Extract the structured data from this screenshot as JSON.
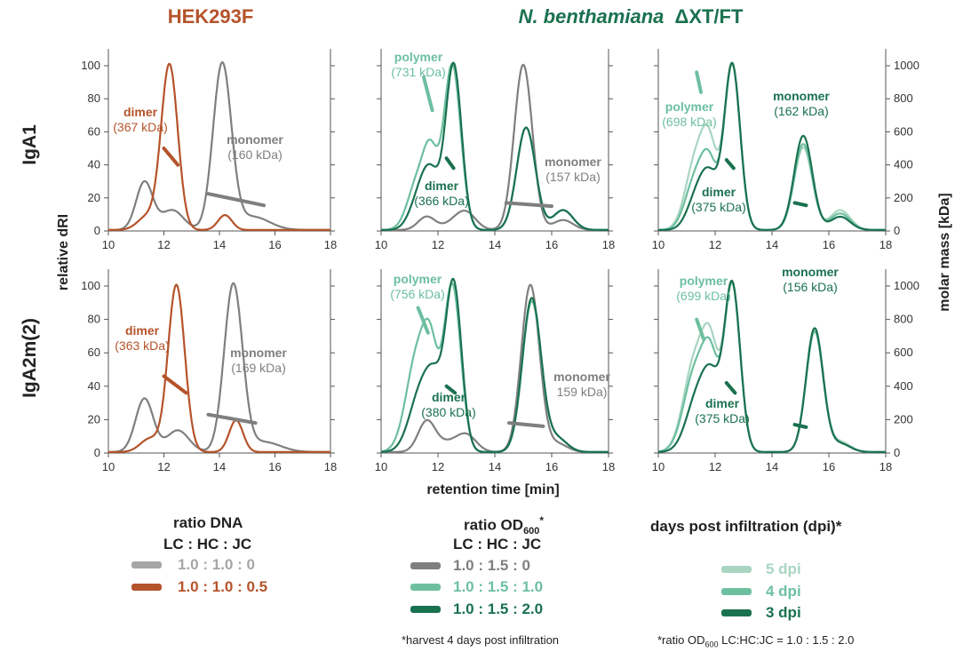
{
  "titles": {
    "hek": "HEK293F",
    "nb_italic": "N. benthamiana",
    "nb_suffix": "ΔXT/FT"
  },
  "row_labels": [
    "IgA1",
    "IgA2m(2)"
  ],
  "axes": {
    "ylabel_left": "relative dRI",
    "ylabel_right": "molar mass [kDa]",
    "xlabel": "retention time [min]",
    "x_ticks": [
      "10",
      "12",
      "14",
      "16",
      "18"
    ],
    "y_ticks_left": [
      "0",
      "20",
      "40",
      "60",
      "80",
      "100"
    ],
    "y_ticks_right": [
      "0",
      "200",
      "400",
      "600",
      "800",
      "1000"
    ]
  },
  "colors": {
    "grey": "#7f7f7f",
    "orange": "#b5532a",
    "green_light": "#a8d5c2",
    "green_mid": "#6dbfa0",
    "green_dark": "#1a7150",
    "hek_title": "#b5532a",
    "nb_title": "#1a7150"
  },
  "annotations": {
    "p1_dimer": [
      "dimer",
      "(367 kDa)"
    ],
    "p1_monomer": [
      "monomer",
      "(160 kDa)"
    ],
    "p2_polymer": [
      "polymer",
      "(731 kDa)"
    ],
    "p2_dimer": [
      "dimer",
      "(366 kDa)"
    ],
    "p2_monomer": [
      "monomer",
      "(157 kDa)"
    ],
    "p3_polymer": [
      "polymer",
      "(698 kDa)"
    ],
    "p3_monomer": [
      "monomer",
      "(162 kDa)"
    ],
    "p3_dimer": [
      "dimer",
      "(375 kDa)"
    ],
    "p4_dimer": [
      "dimer",
      "(363 kDa)"
    ],
    "p4_monomer": [
      "monomer",
      "(169 kDa)"
    ],
    "p5_polymer": [
      "polymer",
      "(756 kDa)"
    ],
    "p5_dimer": [
      "dimer",
      "(380 kDa)"
    ],
    "p5_monomer": [
      "monomer",
      "159 kDa)"
    ],
    "p6_polymer": [
      "polymer",
      "(699 kDa)"
    ],
    "p6_monomer": [
      "monomer",
      "(156 kDa)"
    ],
    "p6_dimer": [
      "dimer",
      "(375 kDa)"
    ]
  },
  "legends": {
    "dna": {
      "title_line1": "ratio  DNA",
      "title_line2": "LC : HC : JC",
      "entries": [
        {
          "label": "1.0 : 1.0 : 0",
          "color": "#a6a6a6"
        },
        {
          "label": "1.0 : 1.0 : 0.5",
          "color": "#b5532a"
        }
      ]
    },
    "od": {
      "title_main": "ratio OD",
      "title_sub": "600",
      "title_star": "*",
      "title_line2": "LC : HC : JC",
      "entries": [
        {
          "label": "1.0 : 1.5 : 0",
          "color": "#7f7f7f"
        },
        {
          "label": "1.0 : 1.5 : 1.0",
          "color": "#6dbfa0"
        },
        {
          "label": "1.0 : 1.5 : 2.0",
          "color": "#1a7150"
        }
      ],
      "note": "*harvest 4 days post infiltration"
    },
    "dpi": {
      "title": "days post infiltration (dpi)*",
      "entries": [
        {
          "label": "5 dpi",
          "color": "#a8d5c2"
        },
        {
          "label": "4 dpi",
          "color": "#6dbfa0"
        },
        {
          "label": "3 dpi",
          "color": "#1a7150"
        }
      ],
      "note_prefix": "*ratio OD",
      "note_sub": "600",
      "note_suffix": " LC:HC:JC = 1.0 : 1.5 : 2.0"
    }
  },
  "chart_data": [
    {
      "id": "p1",
      "type": "line",
      "title": "HEK293F IgA1",
      "xlim": [
        10,
        18
      ],
      "ylim": [
        0,
        105
      ],
      "y2lim": [
        0,
        1000
      ],
      "series": [
        {
          "name": "1.0 : 1.0 : 0",
          "color": "#7f7f7f",
          "peaks": [
            [
              11.3,
              29,
              0.3
            ],
            [
              12.3,
              12,
              0.4
            ],
            [
              14.1,
              100,
              0.33
            ],
            [
              15.2,
              8,
              0.6
            ]
          ]
        },
        {
          "name": "1.0 : 1.0 : 0.5",
          "color": "#b5532a",
          "peaks": [
            [
              11.4,
              8,
              0.35
            ],
            [
              12.2,
              100,
              0.3
            ],
            [
              14.2,
              9,
              0.25
            ]
          ]
        }
      ],
      "molar_mass": [
        {
          "color": "#b5532a",
          "points": [
            [
              12.0,
              500
            ],
            [
              12.5,
              400
            ]
          ]
        },
        {
          "color": "#7f7f7f",
          "points": [
            [
              13.6,
              225
            ],
            [
              15.6,
              155
            ]
          ]
        }
      ]
    },
    {
      "id": "p2",
      "type": "line",
      "title": "N. benthamiana IgA1 (OD600 ratio)",
      "xlim": [
        10,
        18
      ],
      "ylim": [
        0,
        105
      ],
      "y2lim": [
        0,
        1000
      ],
      "series": [
        {
          "name": "1.0 : 1.5 : 0",
          "color": "#7f7f7f",
          "peaks": [
            [
              11.6,
              8,
              0.3
            ],
            [
              12.6,
              4,
              0.4
            ],
            [
              13.0,
              9,
              0.35
            ],
            [
              15.0,
              100,
              0.32
            ],
            [
              16.4,
              6,
              0.35
            ]
          ]
        },
        {
          "name": "1.0 : 1.5 : 1.0",
          "color": "#6dbfa0",
          "peaks": [
            [
              11.3,
              30,
              0.35
            ],
            [
              11.75,
              37,
              0.25
            ],
            [
              12.5,
              100,
              0.3
            ],
            [
              15.1,
              62,
              0.33
            ],
            [
              16.4,
              12,
              0.35
            ]
          ]
        },
        {
          "name": "1.0 : 1.5 : 2.0",
          "color": "#1a7150",
          "peaks": [
            [
              11.4,
              22,
              0.35
            ],
            [
              11.8,
              25,
              0.3
            ],
            [
              12.55,
              100,
              0.28
            ],
            [
              15.1,
              62,
              0.33
            ],
            [
              16.4,
              12,
              0.35
            ]
          ]
        }
      ],
      "molar_mass": [
        {
          "color": "#6dbfa0",
          "points": [
            [
              11.5,
              930
            ],
            [
              11.8,
              730
            ]
          ]
        },
        {
          "color": "#1a7150",
          "points": [
            [
              12.3,
              440
            ],
            [
              12.55,
              380
            ]
          ]
        },
        {
          "color": "#7f7f7f",
          "points": [
            [
              14.4,
              170
            ],
            [
              16.0,
              150
            ]
          ]
        }
      ]
    },
    {
      "id": "p3",
      "type": "line",
      "title": "N. benthamiana IgA1 (dpi)",
      "xlim": [
        10,
        18
      ],
      "ylim": [
        0,
        105
      ],
      "y2lim": [
        0,
        1000
      ],
      "series": [
        {
          "name": "5 dpi",
          "color": "#a8d5c2",
          "peaks": [
            [
              11.3,
              40,
              0.35
            ],
            [
              11.8,
              45,
              0.28
            ],
            [
              12.6,
              100,
              0.28
            ],
            [
              15.1,
              50,
              0.32
            ],
            [
              16.4,
              12,
              0.35
            ]
          ]
        },
        {
          "name": "4 dpi",
          "color": "#6dbfa0",
          "peaks": [
            [
              11.3,
              30,
              0.35
            ],
            [
              11.8,
              35,
              0.28
            ],
            [
              12.6,
              100,
              0.28
            ],
            [
              15.1,
              52,
              0.32
            ],
            [
              16.4,
              10,
              0.35
            ]
          ]
        },
        {
          "name": "3 dpi",
          "color": "#1a7150",
          "peaks": [
            [
              11.4,
              22,
              0.35
            ],
            [
              11.85,
              25,
              0.3
            ],
            [
              12.6,
              100,
              0.28
            ],
            [
              15.1,
              57,
              0.32
            ],
            [
              16.4,
              8,
              0.35
            ]
          ]
        }
      ],
      "molar_mass": [
        {
          "color": "#6dbfa0",
          "points": [
            [
              11.35,
              960
            ],
            [
              11.5,
              840
            ]
          ]
        },
        {
          "color": "#1a7150",
          "points": [
            [
              12.4,
              430
            ],
            [
              12.65,
              380
            ]
          ]
        },
        {
          "color": "#1a7150",
          "points": [
            [
              14.8,
              170
            ],
            [
              15.2,
              155
            ]
          ]
        }
      ]
    },
    {
      "id": "p4",
      "type": "line",
      "title": "HEK293F IgA2m(2)",
      "xlim": [
        10,
        18
      ],
      "ylim": [
        0,
        105
      ],
      "y2lim": [
        0,
        1000
      ],
      "series": [
        {
          "name": "1.0 : 1.0 : 0",
          "color": "#7f7f7f",
          "peaks": [
            [
              11.3,
              32,
              0.32
            ],
            [
              12.5,
              13,
              0.4
            ],
            [
              14.5,
              100,
              0.33
            ],
            [
              15.6,
              6,
              0.6
            ]
          ]
        },
        {
          "name": "1.0 : 1.0 : 0.5",
          "color": "#b5532a",
          "peaks": [
            [
              11.5,
              8,
              0.35
            ],
            [
              12.45,
              100,
              0.3
            ],
            [
              14.6,
              19,
              0.25
            ]
          ]
        }
      ],
      "molar_mass": [
        {
          "color": "#b5532a",
          "points": [
            [
              12.0,
              460
            ],
            [
              12.8,
              360
            ]
          ]
        },
        {
          "color": "#7f7f7f",
          "points": [
            [
              13.6,
              230
            ],
            [
              15.3,
              180
            ]
          ]
        }
      ]
    },
    {
      "id": "p5",
      "type": "line",
      "title": "N. benthamiana IgA2m(2) (OD600 ratio)",
      "xlim": [
        10,
        18
      ],
      "ylim": [
        0,
        105
      ],
      "y2lim": [
        0,
        1000
      ],
      "series": [
        {
          "name": "1.0 : 1.5 : 0",
          "color": "#7f7f7f",
          "peaks": [
            [
              11.6,
              18,
              0.3
            ],
            [
              12.3,
              5,
              0.4
            ],
            [
              13.0,
              10,
              0.35
            ],
            [
              15.25,
              100,
              0.32
            ],
            [
              16.2,
              5,
              0.35
            ]
          ]
        },
        {
          "name": "1.0 : 1.5 : 1.0",
          "color": "#6dbfa0",
          "peaks": [
            [
              11.3,
              60,
              0.4
            ],
            [
              11.75,
              40,
              0.25
            ],
            [
              12.5,
              100,
              0.3
            ],
            [
              15.3,
              90,
              0.33
            ],
            [
              16.2,
              8,
              0.35
            ]
          ]
        },
        {
          "name": "1.0 : 1.5 : 2.0",
          "color": "#1a7150",
          "peaks": [
            [
              11.4,
              36,
              0.4
            ],
            [
              11.9,
              30,
              0.3
            ],
            [
              12.55,
              100,
              0.28
            ],
            [
              15.3,
              92,
              0.33
            ],
            [
              16.2,
              8,
              0.35
            ]
          ]
        }
      ],
      "molar_mass": [
        {
          "color": "#6dbfa0",
          "points": [
            [
              11.3,
              870
            ],
            [
              11.65,
              720
            ]
          ]
        },
        {
          "color": "#1a7150",
          "points": [
            [
              12.3,
              400
            ],
            [
              12.6,
              360
            ]
          ]
        },
        {
          "color": "#7f7f7f",
          "points": [
            [
              14.5,
              180
            ],
            [
              15.7,
              160
            ]
          ]
        }
      ]
    },
    {
      "id": "p6",
      "type": "line",
      "title": "N. benthamiana IgA2m(2) (dpi)",
      "xlim": [
        10,
        18
      ],
      "ylim": [
        0,
        105
      ],
      "y2lim": [
        0,
        1000
      ],
      "series": [
        {
          "name": "5 dpi",
          "color": "#a8d5c2",
          "peaks": [
            [
              11.3,
              55,
              0.4
            ],
            [
              11.85,
              50,
              0.28
            ],
            [
              12.6,
              100,
              0.28
            ],
            [
              15.5,
              74,
              0.3
            ],
            [
              16.4,
              6,
              0.35
            ]
          ]
        },
        {
          "name": "4 dpi",
          "color": "#6dbfa0",
          "peaks": [
            [
              11.3,
              48,
              0.4
            ],
            [
              11.85,
              45,
              0.28
            ],
            [
              12.6,
              100,
              0.28
            ],
            [
              15.5,
              72,
              0.3
            ],
            [
              16.4,
              5,
              0.35
            ]
          ]
        },
        {
          "name": "3 dpi",
          "color": "#1a7150",
          "peaks": [
            [
              11.4,
              34,
              0.4
            ],
            [
              11.9,
              32,
              0.3
            ],
            [
              12.6,
              100,
              0.28
            ],
            [
              15.5,
              74,
              0.3
            ],
            [
              16.4,
              5,
              0.35
            ]
          ]
        }
      ],
      "molar_mass": [
        {
          "color": "#6dbfa0",
          "points": [
            [
              11.35,
              800
            ],
            [
              11.6,
              680
            ]
          ]
        },
        {
          "color": "#1a7150",
          "points": [
            [
              12.4,
              420
            ],
            [
              12.7,
              360
            ]
          ]
        },
        {
          "color": "#1a7150",
          "points": [
            [
              14.8,
              170
            ],
            [
              15.2,
              155
            ]
          ]
        }
      ]
    }
  ]
}
